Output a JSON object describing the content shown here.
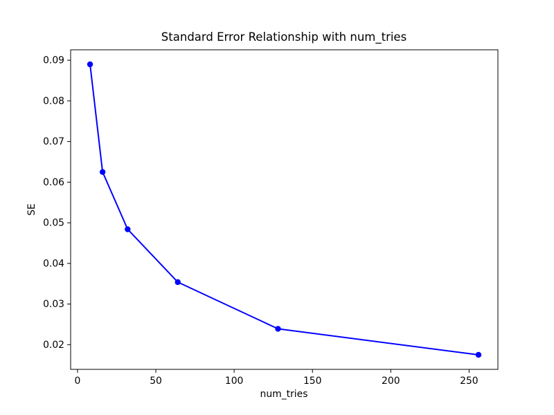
{
  "figure": {
    "background": "#ffffff",
    "frame_color": "#000000",
    "text_color": "#000000"
  },
  "chart_data": {
    "type": "line",
    "title": "Standard Error Relationship with num_tries",
    "xlabel": "num_tries",
    "ylabel": "SE",
    "series": [
      {
        "name": "SE",
        "x": [
          8,
          16,
          32,
          64,
          128,
          256
        ],
        "y": [
          0.089,
          0.0625,
          0.0484,
          0.0354,
          0.0239,
          0.0175
        ],
        "line_color": "#0000ff",
        "marker": "o",
        "marker_color": "#0000ff"
      }
    ],
    "xticks": [
      0,
      50,
      100,
      150,
      200,
      250
    ],
    "xtick_labels": [
      "0",
      "50",
      "100",
      "150",
      "200",
      "250"
    ],
    "yticks": [
      0.02,
      0.03,
      0.04,
      0.05,
      0.06,
      0.07,
      0.08,
      0.09
    ],
    "ytick_labels": [
      "0.02",
      "0.03",
      "0.04",
      "0.05",
      "0.06",
      "0.07",
      "0.08",
      "0.09"
    ],
    "xlim": [
      -4.4,
      268.4
    ],
    "ylim": [
      0.013925,
      0.092575
    ],
    "grid": false,
    "legend": false
  }
}
